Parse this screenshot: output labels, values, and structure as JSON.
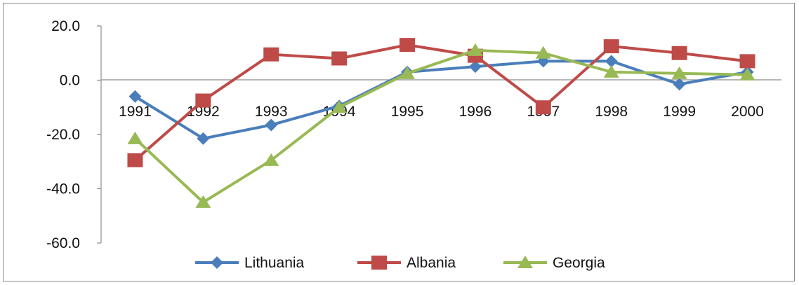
{
  "chart_data": {
    "type": "line",
    "categories": [
      "1991",
      "1992",
      "1993",
      "1994",
      "1995",
      "1996",
      "1997",
      "1998",
      "1999",
      "2000"
    ],
    "yticks": [
      "20.0",
      "0.0",
      "-20.0",
      "-40.0",
      "-60.0"
    ],
    "ylim": [
      -60,
      20
    ],
    "grid": false,
    "legend_position": "bottom",
    "series": [
      {
        "name": "Lithuania",
        "color": "#4a7ebb",
        "marker": "diamond",
        "values": [
          -6.0,
          -21.5,
          -16.5,
          -9.5,
          3.0,
          5.0,
          7.0,
          7.0,
          -1.5,
          3.0
        ]
      },
      {
        "name": "Albania",
        "color": "#be4b48",
        "marker": "square",
        "values": [
          -29.5,
          -7.5,
          9.5,
          8.0,
          13.0,
          9.0,
          -10.0,
          12.5,
          10.0,
          7.0
        ]
      },
      {
        "name": "Georgia",
        "color": "#98b954",
        "marker": "triangle",
        "values": [
          -21.5,
          -45.0,
          -29.5,
          -10.0,
          2.5,
          11.0,
          10.0,
          3.0,
          2.5,
          2.0
        ]
      }
    ]
  }
}
